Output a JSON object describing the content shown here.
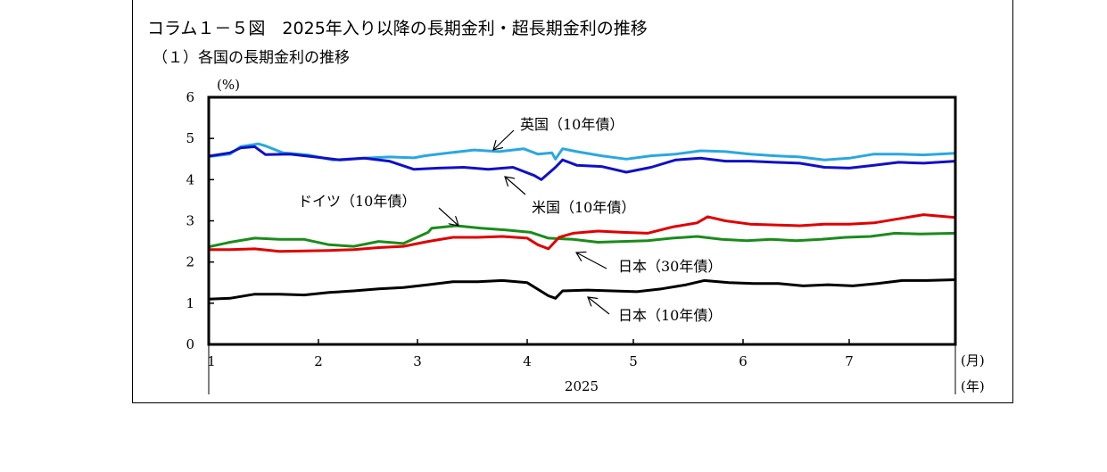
{
  "figure": {
    "title": "コラム１－５図　2025年入り以降の長期金利・超長期金利の推移",
    "subtitle": "（１）各国の長期金利の推移"
  },
  "chart_data": {
    "type": "line",
    "title": "コラム１－５図　2025年入り以降の長期金利・超長期金利の推移",
    "subtitle": "（１）各国の長期金利の推移",
    "y_unit": "(%)",
    "ylim": [
      0,
      6
    ],
    "y_ticks": [
      0,
      1,
      2,
      3,
      4,
      5,
      6
    ],
    "x_unit": "(月)",
    "year_label": "2025",
    "year_unit": "(年)",
    "x_range": [
      "2025-01-01",
      "2025-07-31"
    ],
    "x_tick_labels": [
      "1",
      "2",
      "3",
      "4",
      "5",
      "6",
      "7"
    ],
    "x_tick_dates": [
      "2025-01-01",
      "2025-02-01",
      "2025-03-01",
      "2025-04-01",
      "2025-05-01",
      "2025-06-01",
      "2025-07-01"
    ],
    "grid": false,
    "series": [
      {
        "name": "英国（10年債）",
        "color": "#29a8e0",
        "points": [
          [
            "2025-01-01",
            4.56
          ],
          [
            "2025-01-07",
            4.62
          ],
          [
            "2025-01-10",
            4.8
          ],
          [
            "2025-01-15",
            4.87
          ],
          [
            "2025-01-17",
            4.82
          ],
          [
            "2025-01-22",
            4.65
          ],
          [
            "2025-01-29",
            4.6
          ],
          [
            "2025-02-05",
            4.48
          ],
          [
            "2025-02-14",
            4.52
          ],
          [
            "2025-02-21",
            4.55
          ],
          [
            "2025-02-28",
            4.53
          ],
          [
            "2025-03-03",
            4.58
          ],
          [
            "2025-03-10",
            4.65
          ],
          [
            "2025-03-17",
            4.72
          ],
          [
            "2025-03-24",
            4.68
          ],
          [
            "2025-03-31",
            4.75
          ],
          [
            "2025-04-04",
            4.62
          ],
          [
            "2025-04-08",
            4.65
          ],
          [
            "2025-04-09",
            4.5
          ],
          [
            "2025-04-11",
            4.75
          ],
          [
            "2025-04-15",
            4.68
          ],
          [
            "2025-04-22",
            4.58
          ],
          [
            "2025-04-29",
            4.5
          ],
          [
            "2025-05-06",
            4.58
          ],
          [
            "2025-05-13",
            4.62
          ],
          [
            "2025-05-20",
            4.7
          ],
          [
            "2025-05-27",
            4.68
          ],
          [
            "2025-06-03",
            4.62
          ],
          [
            "2025-06-10",
            4.58
          ],
          [
            "2025-06-17",
            4.55
          ],
          [
            "2025-06-24",
            4.48
          ],
          [
            "2025-07-01",
            4.52
          ],
          [
            "2025-07-08",
            4.62
          ],
          [
            "2025-07-15",
            4.62
          ],
          [
            "2025-07-22",
            4.6
          ],
          [
            "2025-07-31",
            4.64
          ]
        ]
      },
      {
        "name": "米国（10年債）",
        "color": "#1010c8",
        "points": [
          [
            "2025-01-01",
            4.57
          ],
          [
            "2025-01-07",
            4.65
          ],
          [
            "2025-01-10",
            4.77
          ],
          [
            "2025-01-14",
            4.8
          ],
          [
            "2025-01-17",
            4.61
          ],
          [
            "2025-01-24",
            4.62
          ],
          [
            "2025-01-31",
            4.55
          ],
          [
            "2025-02-07",
            4.48
          ],
          [
            "2025-02-14",
            4.52
          ],
          [
            "2025-02-21",
            4.45
          ],
          [
            "2025-02-28",
            4.25
          ],
          [
            "2025-03-07",
            4.28
          ],
          [
            "2025-03-14",
            4.3
          ],
          [
            "2025-03-21",
            4.25
          ],
          [
            "2025-03-28",
            4.3
          ],
          [
            "2025-04-03",
            4.1
          ],
          [
            "2025-04-05",
            4.0
          ],
          [
            "2025-04-09",
            4.3
          ],
          [
            "2025-04-11",
            4.48
          ],
          [
            "2025-04-15",
            4.35
          ],
          [
            "2025-04-22",
            4.32
          ],
          [
            "2025-04-29",
            4.18
          ],
          [
            "2025-05-06",
            4.3
          ],
          [
            "2025-05-13",
            4.48
          ],
          [
            "2025-05-20",
            4.52
          ],
          [
            "2025-05-27",
            4.45
          ],
          [
            "2025-06-03",
            4.45
          ],
          [
            "2025-06-10",
            4.42
          ],
          [
            "2025-06-17",
            4.4
          ],
          [
            "2025-06-24",
            4.3
          ],
          [
            "2025-07-01",
            4.28
          ],
          [
            "2025-07-08",
            4.35
          ],
          [
            "2025-07-15",
            4.42
          ],
          [
            "2025-07-22",
            4.4
          ],
          [
            "2025-07-31",
            4.45
          ]
        ]
      },
      {
        "name": "ドイツ（10年債）",
        "color": "#1a8c1a",
        "points": [
          [
            "2025-01-01",
            2.37
          ],
          [
            "2025-01-07",
            2.48
          ],
          [
            "2025-01-14",
            2.58
          ],
          [
            "2025-01-21",
            2.55
          ],
          [
            "2025-01-28",
            2.55
          ],
          [
            "2025-02-04",
            2.42
          ],
          [
            "2025-02-11",
            2.38
          ],
          [
            "2025-02-18",
            2.5
          ],
          [
            "2025-02-25",
            2.45
          ],
          [
            "2025-03-04",
            2.72
          ],
          [
            "2025-03-05",
            2.82
          ],
          [
            "2025-03-12",
            2.88
          ],
          [
            "2025-03-19",
            2.82
          ],
          [
            "2025-03-26",
            2.78
          ],
          [
            "2025-04-02",
            2.72
          ],
          [
            "2025-04-07",
            2.58
          ],
          [
            "2025-04-14",
            2.55
          ],
          [
            "2025-04-21",
            2.48
          ],
          [
            "2025-04-28",
            2.5
          ],
          [
            "2025-05-05",
            2.52
          ],
          [
            "2025-05-12",
            2.58
          ],
          [
            "2025-05-19",
            2.62
          ],
          [
            "2025-05-26",
            2.55
          ],
          [
            "2025-06-02",
            2.52
          ],
          [
            "2025-06-09",
            2.55
          ],
          [
            "2025-06-16",
            2.52
          ],
          [
            "2025-06-23",
            2.55
          ],
          [
            "2025-06-30",
            2.6
          ],
          [
            "2025-07-07",
            2.62
          ],
          [
            "2025-07-14",
            2.7
          ],
          [
            "2025-07-21",
            2.68
          ],
          [
            "2025-07-31",
            2.7
          ]
        ]
      },
      {
        "name": "日本（30年債）",
        "color": "#e00000",
        "points": [
          [
            "2025-01-01",
            2.3
          ],
          [
            "2025-01-07",
            2.3
          ],
          [
            "2025-01-14",
            2.32
          ],
          [
            "2025-01-21",
            2.26
          ],
          [
            "2025-01-28",
            2.27
          ],
          [
            "2025-02-04",
            2.28
          ],
          [
            "2025-02-11",
            2.3
          ],
          [
            "2025-02-18",
            2.35
          ],
          [
            "2025-02-25",
            2.38
          ],
          [
            "2025-03-04",
            2.5
          ],
          [
            "2025-03-11",
            2.6
          ],
          [
            "2025-03-18",
            2.6
          ],
          [
            "2025-03-25",
            2.62
          ],
          [
            "2025-04-01",
            2.58
          ],
          [
            "2025-04-04",
            2.42
          ],
          [
            "2025-04-07",
            2.32
          ],
          [
            "2025-04-10",
            2.6
          ],
          [
            "2025-04-14",
            2.7
          ],
          [
            "2025-04-21",
            2.75
          ],
          [
            "2025-04-28",
            2.72
          ],
          [
            "2025-05-05",
            2.7
          ],
          [
            "2025-05-12",
            2.85
          ],
          [
            "2025-05-19",
            2.95
          ],
          [
            "2025-05-22",
            3.1
          ],
          [
            "2025-05-27",
            3.0
          ],
          [
            "2025-06-03",
            2.92
          ],
          [
            "2025-06-10",
            2.9
          ],
          [
            "2025-06-17",
            2.88
          ],
          [
            "2025-06-24",
            2.92
          ],
          [
            "2025-07-01",
            2.92
          ],
          [
            "2025-07-08",
            2.95
          ],
          [
            "2025-07-15",
            3.05
          ],
          [
            "2025-07-22",
            3.15
          ],
          [
            "2025-07-31",
            3.08
          ]
        ]
      },
      {
        "name": "日本（10年債）",
        "color": "#000000",
        "points": [
          [
            "2025-01-01",
            1.1
          ],
          [
            "2025-01-07",
            1.12
          ],
          [
            "2025-01-14",
            1.22
          ],
          [
            "2025-01-21",
            1.22
          ],
          [
            "2025-01-28",
            1.2
          ],
          [
            "2025-02-04",
            1.26
          ],
          [
            "2025-02-11",
            1.3
          ],
          [
            "2025-02-18",
            1.35
          ],
          [
            "2025-02-25",
            1.38
          ],
          [
            "2025-03-04",
            1.45
          ],
          [
            "2025-03-11",
            1.52
          ],
          [
            "2025-03-18",
            1.52
          ],
          [
            "2025-03-25",
            1.55
          ],
          [
            "2025-04-01",
            1.5
          ],
          [
            "2025-04-07",
            1.18
          ],
          [
            "2025-04-09",
            1.12
          ],
          [
            "2025-04-11",
            1.3
          ],
          [
            "2025-04-18",
            1.32
          ],
          [
            "2025-04-25",
            1.3
          ],
          [
            "2025-05-02",
            1.28
          ],
          [
            "2025-05-09",
            1.35
          ],
          [
            "2025-05-16",
            1.45
          ],
          [
            "2025-05-21",
            1.55
          ],
          [
            "2025-05-28",
            1.5
          ],
          [
            "2025-06-04",
            1.48
          ],
          [
            "2025-06-11",
            1.48
          ],
          [
            "2025-06-18",
            1.42
          ],
          [
            "2025-06-25",
            1.45
          ],
          [
            "2025-07-02",
            1.42
          ],
          [
            "2025-07-09",
            1.48
          ],
          [
            "2025-07-16",
            1.55
          ],
          [
            "2025-07-23",
            1.55
          ],
          [
            "2025-07-31",
            1.57
          ]
        ]
      }
    ]
  }
}
